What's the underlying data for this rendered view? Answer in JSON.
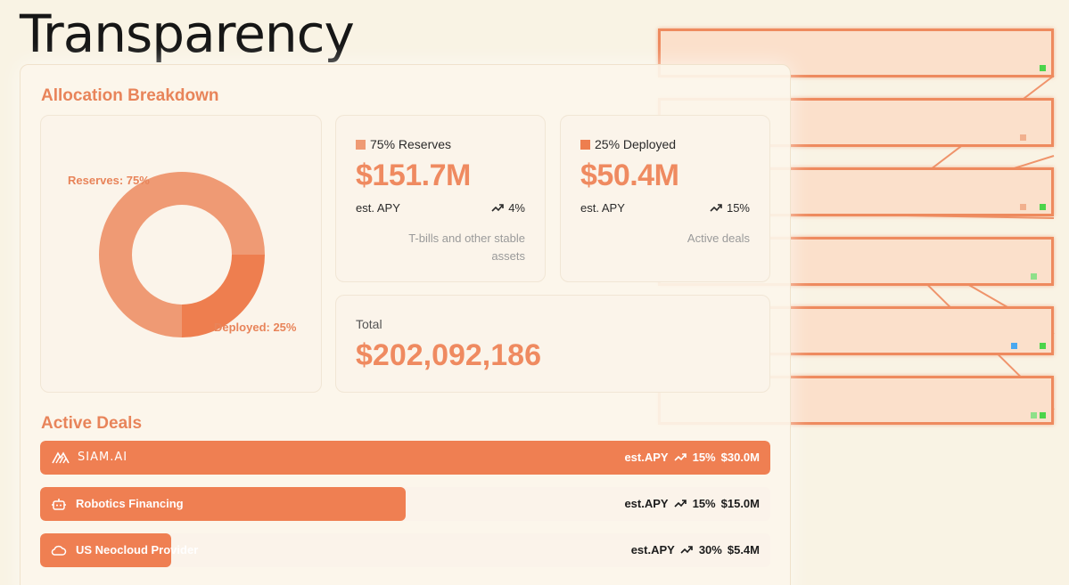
{
  "page": {
    "title": "Transparency"
  },
  "allocation": {
    "title": "Allocation Breakdown",
    "chart_data": {
      "type": "pie",
      "categories": [
        "Reserves",
        "Deployed"
      ],
      "values": [
        75,
        25
      ],
      "labels": [
        "Reserves: 75%",
        "Deployed: 25%"
      ],
      "colors": [
        "#ef9a74",
        "#ee7e4f"
      ],
      "title": ""
    },
    "reserves": {
      "legend": "75% Reserves",
      "value": "$151.7M",
      "apy_label": "est. APY",
      "apy_value": "4%",
      "description": "T-bills and other stable assets",
      "color": "#ef9a74"
    },
    "deployed": {
      "legend": "25% Deployed",
      "value": "$50.4M",
      "apy_label": "est. APY",
      "apy_value": "15%",
      "description": "Active deals",
      "color": "#ee7e4f"
    },
    "total": {
      "label": "Total",
      "value": "$202,092,186"
    }
  },
  "deals": {
    "title": "Active Deals",
    "items": [
      {
        "name": "SIAM.AI",
        "icon": "siam-logo-icon",
        "apy_label": "est.APY",
        "apy": "15%",
        "amount": "$30.0M",
        "fill_fraction": 1.0,
        "text_color": "#ffffff"
      },
      {
        "name": "Robotics Financing",
        "icon": "robot-icon",
        "apy_label": "est.APY",
        "apy": "15%",
        "amount": "$15.0M",
        "fill_fraction": 0.5,
        "text_color": "#1c1c1c"
      },
      {
        "name": "US Neocloud Provider",
        "icon": "cloud-icon",
        "apy_label": "est.APY",
        "apy": "30%",
        "amount": "$5.4M",
        "fill_fraction": 0.18,
        "text_color": "#1c1c1c"
      }
    ]
  }
}
